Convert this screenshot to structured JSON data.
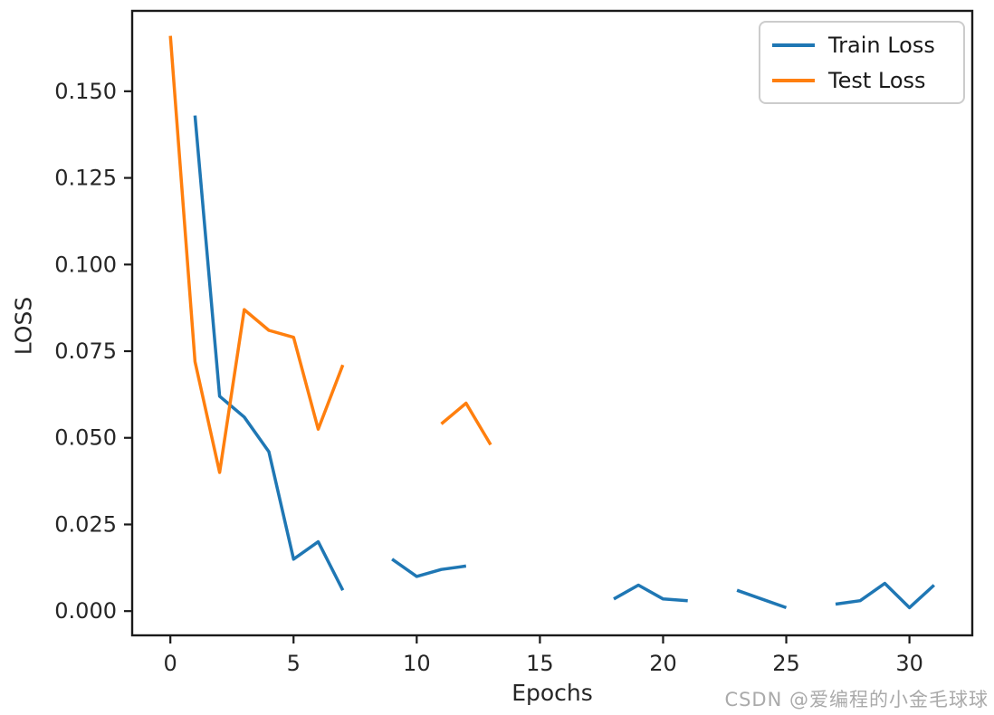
{
  "watermark": {
    "text": "CSDN @爱编程的小金毛球球",
    "color": "#aaaaaa"
  },
  "chart_data": {
    "type": "line",
    "title": "",
    "xlabel": "Epochs",
    "ylabel": "LOSS",
    "grid": false,
    "axis_color": "#1a1a1a",
    "background_color": "#ffffff",
    "xlim": [
      -1.55,
      32.55
    ],
    "ylim": [
      -0.007,
      0.1732
    ],
    "xticks": [
      0,
      5,
      10,
      15,
      20,
      25,
      30
    ],
    "xtick_labels": [
      "0",
      "5",
      "10",
      "15",
      "20",
      "25",
      "30"
    ],
    "yticks": [
      0.0,
      0.025,
      0.05,
      0.075,
      0.1,
      0.125,
      0.15
    ],
    "ytick_labels": [
      "0.000",
      "0.025",
      "0.050",
      "0.075",
      "0.100",
      "0.125",
      "0.150"
    ],
    "x": [
      0,
      1,
      2,
      3,
      4,
      5,
      6,
      7,
      8,
      9,
      10,
      11,
      12,
      13,
      14,
      15,
      16,
      17,
      18,
      19,
      20,
      21,
      22,
      23,
      24,
      25,
      26,
      27,
      28,
      29,
      30,
      31
    ],
    "series": [
      {
        "name": "Train Loss",
        "color": "#1f77b4",
        "values": [
          null,
          0.143,
          0.062,
          0.056,
          0.046,
          0.015,
          0.02,
          0.006,
          null,
          0.015,
          0.01,
          0.012,
          0.013,
          null,
          null,
          null,
          null,
          null,
          0.0035,
          0.0075,
          0.0035,
          0.003,
          null,
          0.006,
          0.0035,
          0.001,
          null,
          0.002,
          0.003,
          0.008,
          0.001,
          0.0075
        ]
      },
      {
        "name": "Test Loss",
        "color": "#ff7f0e",
        "values": [
          0.166,
          0.072,
          0.04,
          0.087,
          0.081,
          0.079,
          0.0525,
          0.071,
          null,
          null,
          null,
          0.054,
          0.06,
          0.048,
          null,
          null,
          null,
          null,
          null,
          null,
          null,
          null,
          null,
          null,
          null,
          null,
          null,
          null,
          null,
          null,
          null,
          null
        ]
      }
    ],
    "legend": {
      "position": "upper right",
      "entries": [
        "Train Loss",
        "Test Loss"
      ]
    }
  }
}
